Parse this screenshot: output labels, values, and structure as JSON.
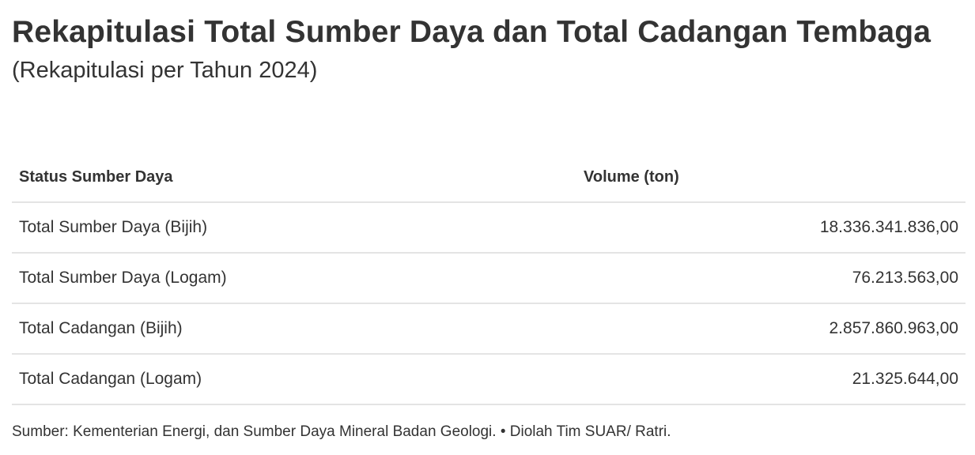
{
  "title": "Rekapitulasi Total Sumber Daya dan Total Cadangan Tembaga",
  "subtitle": "(Rekapitulasi per Tahun 2024)",
  "chart_data": {
    "type": "table",
    "columns": [
      "Status Sumber Daya",
      "Volume (ton)"
    ],
    "rows": [
      {
        "status": "Total Sumber Daya (Bijih)",
        "volume": "18.336.341.836,00"
      },
      {
        "status": "Total Sumber Daya (Logam)",
        "volume": "76.213.563,00"
      },
      {
        "status": "Total Cadangan (Bijih)",
        "volume": "2.857.860.963,00"
      },
      {
        "status": "Total Cadangan (Logam)",
        "volume": "21.325.644,00"
      }
    ]
  },
  "footer": "Sumber: Kementerian Energi, dan Sumber Daya Mineral Badan Geologi. • Diolah Tim SUAR/ Ratri.",
  "colors": {
    "text": "#333333",
    "divider": "#e4e4e4"
  }
}
